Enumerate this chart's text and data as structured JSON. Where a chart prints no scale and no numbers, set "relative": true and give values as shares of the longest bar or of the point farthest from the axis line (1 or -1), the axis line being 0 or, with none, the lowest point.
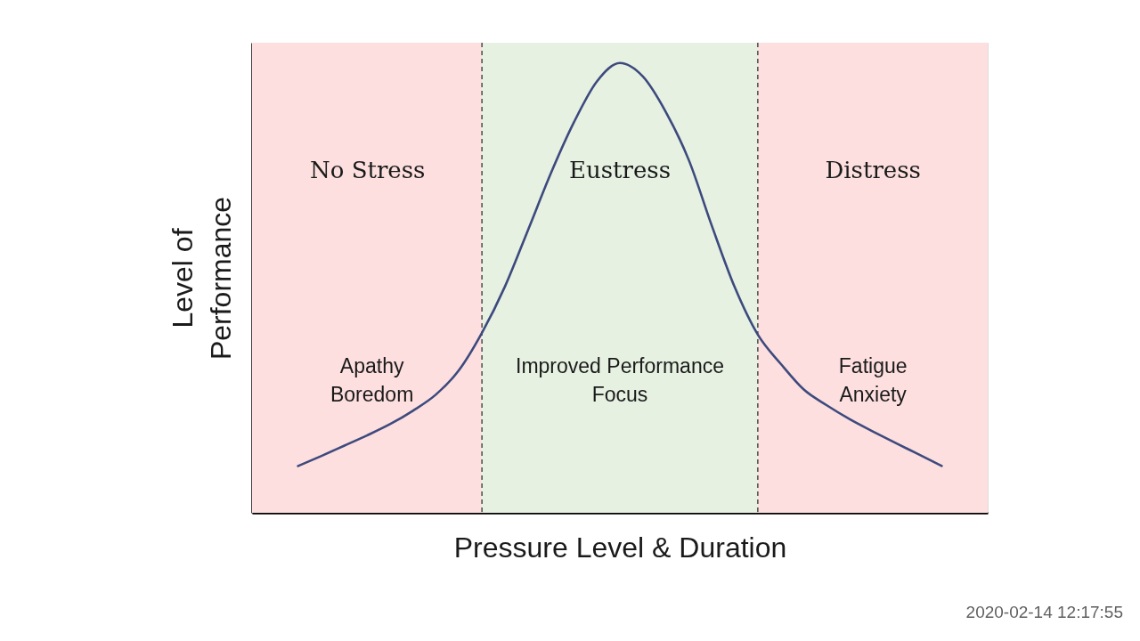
{
  "chart_data": {
    "type": "line",
    "xlabel": "Pressure Level & Duration",
    "ylabel": "Level of\nPerformance",
    "relative": true,
    "line_style": "solid",
    "categories": [
      null,
      null,
      null,
      null,
      null,
      null,
      null,
      null,
      null,
      null,
      null,
      null,
      null,
      null,
      null,
      null,
      null,
      null,
      null,
      null,
      null,
      null,
      null,
      null,
      null,
      null,
      null,
      null,
      null,
      null,
      null,
      null,
      null
    ],
    "series": [
      {
        "color": "#3d4a7e",
        "values": [
          null,
          null,
          0.104,
          0.126,
          0.149,
          0.172,
          0.197,
          0.227,
          0.263,
          0.317,
          0.4,
          0.503,
          0.628,
          0.755,
          0.868,
          0.959,
          1.0,
          0.97,
          0.891,
          0.784,
          0.638,
          0.501,
          0.396,
          0.331,
          0.274,
          0.239,
          0.208,
          0.181,
          0.155,
          0.13,
          0.104,
          null,
          null
        ]
      }
    ],
    "annotations": [
      "No Stress",
      "Eustress",
      "Distress",
      "Apathy\nBoredom",
      "Improved Performance\nFocus",
      "Fatigue\nAnxiety",
      "2020-02-14 12:17:55"
    ]
  }
}
